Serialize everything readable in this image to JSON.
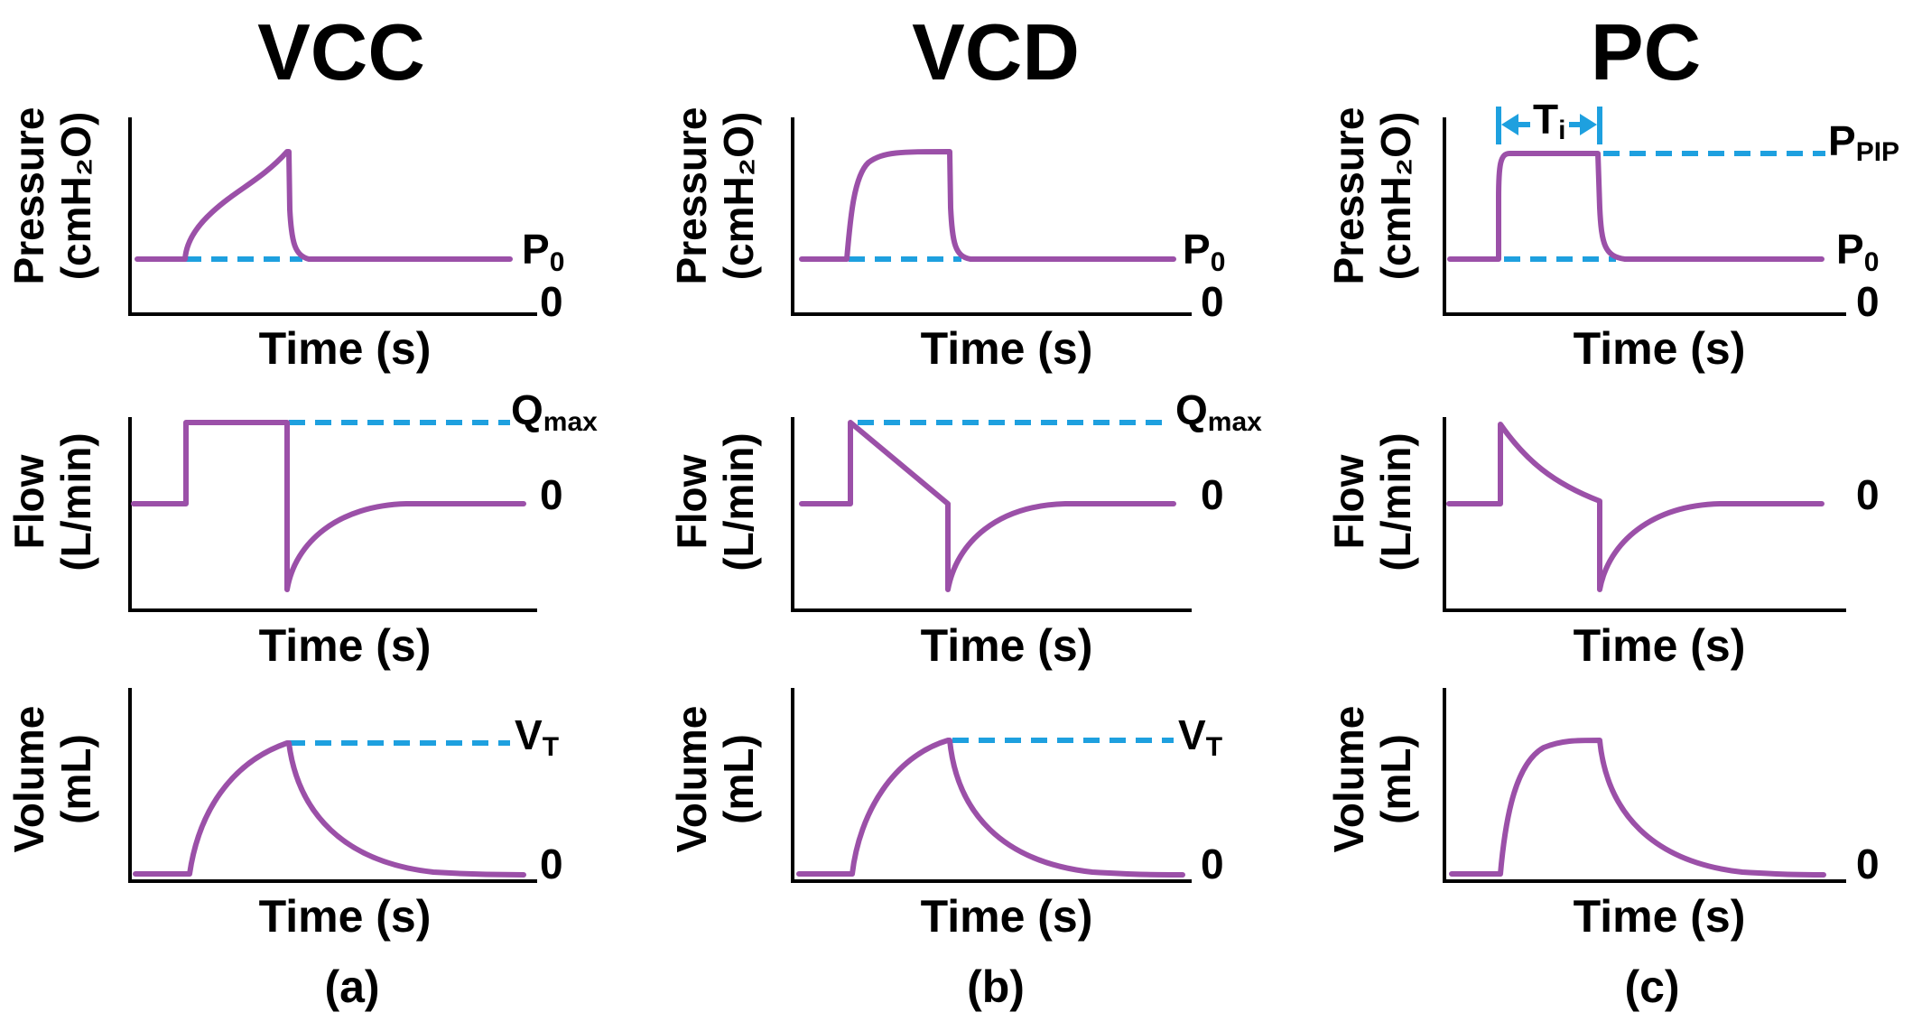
{
  "colors": {
    "waveform": "#9b50a8",
    "reference": "#1ea0df",
    "axis": "#000000"
  },
  "columns": [
    {
      "title": "VCC",
      "caption": "(a)",
      "pressure": {
        "ylabel_line1": "Pressure",
        "ylabel_line2": "(cmH₂O)",
        "xlabel": "Time (s)",
        "zero": "0",
        "baseline_label": "P",
        "baseline_sub": "0"
      },
      "flow": {
        "ylabel_line1": "Flow",
        "ylabel_line2": "(L/min)",
        "xlabel": "Time (s)",
        "zero": "0",
        "peak_label": "Q",
        "peak_sub": "max"
      },
      "volume": {
        "ylabel_line1": "Volume",
        "ylabel_line2": "(mL)",
        "xlabel": "Time (s)",
        "zero": "0",
        "peak_label": "V",
        "peak_sub": "T"
      }
    },
    {
      "title": "VCD",
      "caption": "(b)",
      "pressure": {
        "ylabel_line1": "Pressure",
        "ylabel_line2": "(cmH₂O)",
        "xlabel": "Time (s)",
        "zero": "0",
        "baseline_label": "P",
        "baseline_sub": "0"
      },
      "flow": {
        "ylabel_line1": "Flow",
        "ylabel_line2": "(L/min)",
        "xlabel": "Time (s)",
        "zero": "0",
        "peak_label": "Q",
        "peak_sub": "max"
      },
      "volume": {
        "ylabel_line1": "Volume",
        "ylabel_line2": "(mL)",
        "xlabel": "Time (s)",
        "zero": "0",
        "peak_label": "V",
        "peak_sub": "T"
      }
    },
    {
      "title": "PC",
      "caption": "(c)",
      "pressure": {
        "ylabel_line1": "Pressure",
        "ylabel_line2": "(cmH₂O)",
        "xlabel": "Time (s)",
        "zero": "0",
        "baseline_label": "P",
        "baseline_sub": "0",
        "peak_label": "P",
        "peak_sub": "PIP",
        "ti_label": "T",
        "ti_sub": "i"
      },
      "flow": {
        "ylabel_line1": "Flow",
        "ylabel_line2": "(L/min)",
        "xlabel": "Time (s)",
        "zero": "0"
      },
      "volume": {
        "ylabel_line1": "Volume",
        "ylabel_line2": "(mL)",
        "xlabel": "Time (s)",
        "zero": "0"
      }
    }
  ]
}
